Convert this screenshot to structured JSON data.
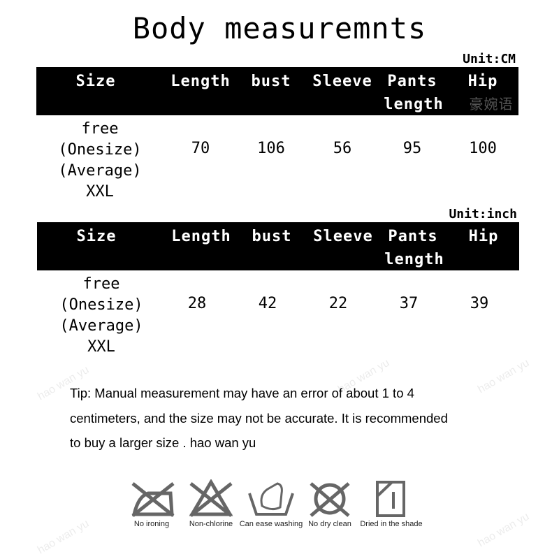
{
  "title": "Body measuremnts",
  "columns": [
    "Size",
    "Length",
    "bust",
    "Sleeve",
    "Pants length",
    "Hip"
  ],
  "columns_lines": {
    "pants_1": "Pants",
    "pants_2": "length"
  },
  "size_label": [
    "free",
    "(Onesize)",
    "(Average)",
    "XXL"
  ],
  "table_cm": {
    "unit": "Unit:CM",
    "values": [
      "70",
      "106",
      "56",
      "95",
      "100"
    ],
    "watermark": "豪婉语"
  },
  "table_inch": {
    "unit": "Unit:inch",
    "values": [
      "28",
      "42",
      "22",
      "37",
      "39"
    ]
  },
  "tip": [
    "Tip: Manual measurement may have an error of about 1 to 4",
    "centimeters, and the size may not be accurate. It is recommended",
    "to buy a larger size .   hao wan yu"
  ],
  "care": [
    {
      "icon": "no-ironing-icon",
      "label": "No ironing"
    },
    {
      "icon": "non-chlorine-icon",
      "label": "Non-chlorine"
    },
    {
      "icon": "hand-wash-icon",
      "label": "Can ease washing"
    },
    {
      "icon": "no-dry-clean-icon",
      "label": "No dry clean"
    },
    {
      "icon": "dry-in-shade-icon",
      "label": "Dried in the shade"
    }
  ],
  "watermark_text": "hao wan yu",
  "colors": {
    "header_bg": "#000000",
    "icon": "#666666"
  }
}
